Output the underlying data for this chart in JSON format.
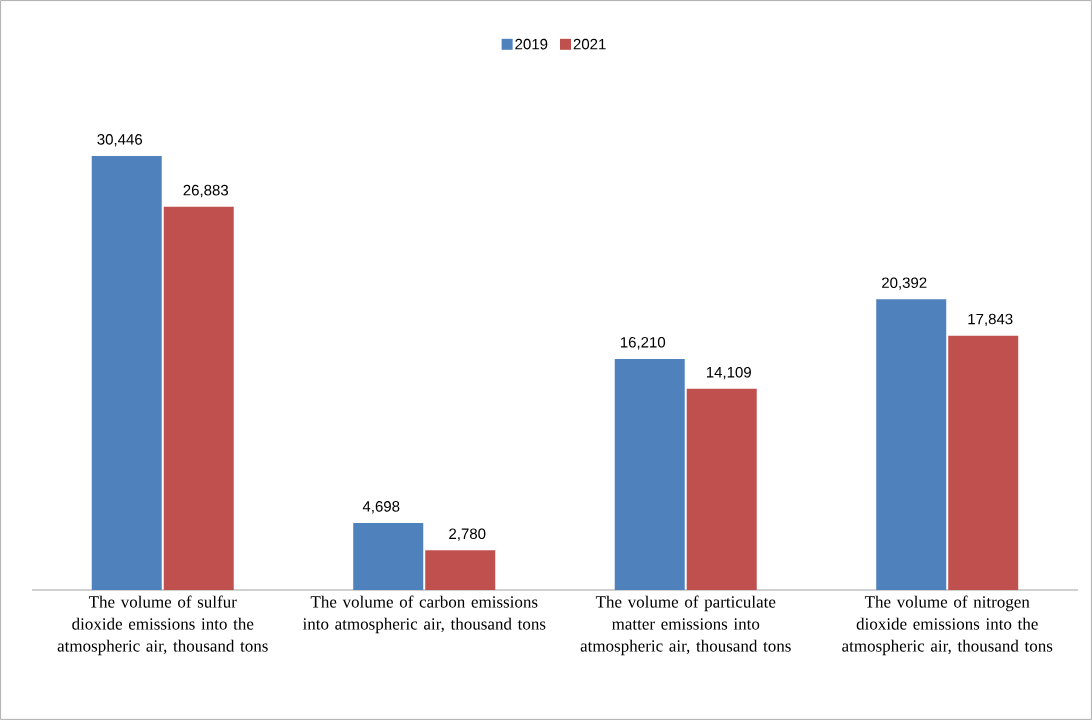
{
  "chart_data": {
    "type": "bar",
    "categories": [
      "The volume of sulfur dioxide emissions into the atmospheric air, thousand tons",
      "The volume of carbon emissions into atmospheric air, thousand tons",
      "The volume of particulate matter emissions into atmospheric air, thousand tons",
      "The volume of nitrogen dioxide emissions into the atmospheric air, thousand tons"
    ],
    "series": [
      {
        "name": "2019",
        "color": "#4f81bd",
        "values": [
          30446,
          4698,
          16210,
          20392
        ],
        "value_labels": [
          "30,446",
          "4,698",
          "16,210",
          "20,392"
        ]
      },
      {
        "name": "2021",
        "color": "#c0504d",
        "values": [
          26883,
          2780,
          14109,
          17843
        ],
        "value_labels": [
          "26,883",
          "2,780",
          "14,109",
          "17,843"
        ]
      }
    ],
    "legend": "top"
  }
}
